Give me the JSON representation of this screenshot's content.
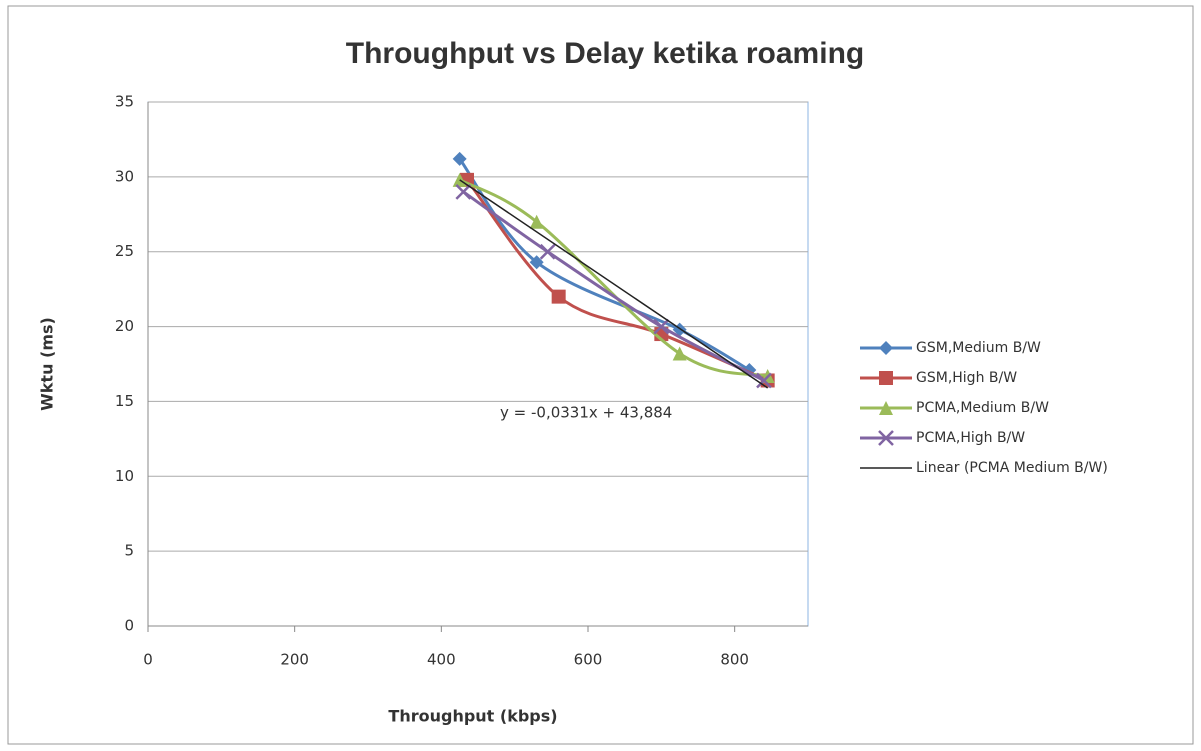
{
  "chart_data": {
    "type": "scatter-line",
    "title": "Throughput vs Delay ketika roaming",
    "x_label": "Throughput (kbps)",
    "y_label": "Wktu (ms)",
    "xlim": [
      0,
      900
    ],
    "xticks": [
      0,
      200,
      400,
      600,
      800
    ],
    "ylim": [
      0,
      35
    ],
    "yticks": [
      0,
      5,
      10,
      15,
      20,
      25,
      30,
      35
    ],
    "grid": true,
    "legend": "right",
    "series": [
      {
        "name": "GSM,Medium B/W",
        "color": "#4f81bd",
        "marker": "diamond",
        "x": [
          425,
          530,
          725,
          820
        ],
        "values": [
          31.2,
          24.3,
          19.8,
          17.1
        ]
      },
      {
        "name": "GSM,High B/W",
        "color": "#c0504d",
        "marker": "square",
        "x": [
          435,
          560,
          700,
          845
        ],
        "values": [
          29.8,
          22.0,
          19.5,
          16.4
        ]
      },
      {
        "name": "PCMA,Medium B/W",
        "color": "#9bbb59",
        "marker": "triangle",
        "x": [
          425,
          530,
          725,
          845
        ],
        "values": [
          29.8,
          27.0,
          18.2,
          16.7
        ]
      },
      {
        "name": "PCMA,High B/W",
        "color": "#8064a2",
        "marker": "cross",
        "x": [
          430,
          545,
          700,
          840
        ],
        "values": [
          29.0,
          25.0,
          20.0,
          16.4
        ]
      }
    ],
    "trendline": {
      "name": "Linear (PCMA Medium B/W)",
      "color": "#222222",
      "x": [
        425,
        845
      ],
      "values": [
        29.8,
        15.9
      ]
    },
    "annotation": "y = -0,0331x + 43,884"
  }
}
